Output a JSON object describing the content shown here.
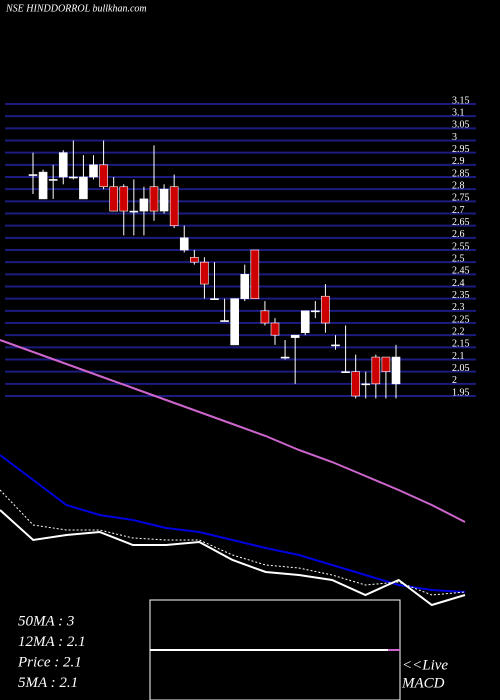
{
  "chart_data": {
    "type": "candlestick",
    "title": "NSE HINDDORROL bullkhan.com",
    "ylim": [
      1.95,
      3.15
    ],
    "yticks": [
      3.15,
      3.1,
      3.05,
      3,
      2.95,
      2.9,
      2.85,
      2.8,
      2.75,
      2.7,
      2.65,
      2.6,
      2.55,
      2.5,
      2.45,
      2.4,
      2.35,
      2.3,
      2.25,
      2.2,
      2.15,
      2.1,
      2.05,
      2,
      1.95
    ],
    "grid": true,
    "grid_color": "#1c1c80",
    "up_color": "#ffffff",
    "down_color": "#cc0000",
    "candles": [
      {
        "open": 2.86,
        "high": 2.95,
        "low": 2.78,
        "close": 2.86
      },
      {
        "open": 2.76,
        "high": 2.88,
        "low": 2.76,
        "close": 2.87
      },
      {
        "open": 2.84,
        "high": 2.9,
        "low": 2.76,
        "close": 2.84
      },
      {
        "open": 2.85,
        "high": 2.96,
        "low": 2.82,
        "close": 2.95
      },
      {
        "open": 2.85,
        "high": 3.0,
        "low": 2.84,
        "close": 2.85
      },
      {
        "open": 2.76,
        "high": 2.94,
        "low": 2.76,
        "close": 2.85
      },
      {
        "open": 2.85,
        "high": 2.94,
        "low": 2.84,
        "close": 2.9
      },
      {
        "open": 2.9,
        "high": 3.0,
        "low": 2.8,
        "close": 2.81
      },
      {
        "open": 2.81,
        "high": 2.85,
        "low": 2.71,
        "close": 2.71
      },
      {
        "open": 2.81,
        "high": 2.82,
        "low": 2.61,
        "close": 2.71
      },
      {
        "open": 2.71,
        "high": 2.84,
        "low": 2.61,
        "close": 2.71
      },
      {
        "open": 2.71,
        "high": 2.81,
        "low": 2.61,
        "close": 2.76
      },
      {
        "open": 2.81,
        "high": 2.98,
        "low": 2.67,
        "close": 2.71
      },
      {
        "open": 2.71,
        "high": 2.82,
        "low": 2.7,
        "close": 2.8
      },
      {
        "open": 2.81,
        "high": 2.86,
        "low": 2.64,
        "close": 2.65
      },
      {
        "open": 2.55,
        "high": 2.65,
        "low": 2.54,
        "close": 2.6
      },
      {
        "open": 2.52,
        "high": 2.55,
        "low": 2.49,
        "close": 2.5
      },
      {
        "open": 2.5,
        "high": 2.52,
        "low": 2.35,
        "close": 2.41
      },
      {
        "open": 2.35,
        "high": 2.5,
        "low": 2.35,
        "close": 2.35
      },
      {
        "open": 2.26,
        "high": 2.35,
        "low": 2.26,
        "close": 2.26
      },
      {
        "open": 2.16,
        "high": 2.35,
        "low": 2.16,
        "close": 2.35
      },
      {
        "open": 2.35,
        "high": 2.49,
        "low": 2.34,
        "close": 2.45
      },
      {
        "open": 2.55,
        "high": 2.55,
        "low": 2.35,
        "close": 2.35
      },
      {
        "open": 2.3,
        "high": 2.34,
        "low": 2.24,
        "close": 2.25
      },
      {
        "open": 2.25,
        "high": 2.27,
        "low": 2.16,
        "close": 2.2
      },
      {
        "open": 2.11,
        "high": 2.18,
        "low": 2.1,
        "close": 2.11
      },
      {
        "open": 2.19,
        "high": 2.2,
        "low": 2.0,
        "close": 2.2
      },
      {
        "open": 2.21,
        "high": 2.3,
        "low": 2.2,
        "close": 2.3
      },
      {
        "open": 2.3,
        "high": 2.34,
        "low": 2.27,
        "close": 2.3
      },
      {
        "open": 2.36,
        "high": 2.41,
        "low": 2.21,
        "close": 2.25
      },
      {
        "open": 2.16,
        "high": 2.2,
        "low": 2.14,
        "close": 2.16
      },
      {
        "open": 2.05,
        "high": 2.24,
        "low": 2.05,
        "close": 2.05
      },
      {
        "open": 2.05,
        "high": 2.12,
        "low": 1.94,
        "close": 1.95
      },
      {
        "open": 2.0,
        "high": 2.05,
        "low": 1.94,
        "close": 2.0
      },
      {
        "open": 2.11,
        "high": 2.12,
        "low": 1.94,
        "close": 2.0
      },
      {
        "open": 2.11,
        "high": 2.11,
        "low": 1.94,
        "close": 2.05
      },
      {
        "open": 2.0,
        "high": 2.16,
        "low": 1.94,
        "close": 2.11
      }
    ],
    "ma_panel": {
      "ylim": [
        -10,
        300
      ],
      "series": [
        {
          "color": "#cc66cc",
          "values": [
            260,
            248,
            236,
            224,
            212,
            200,
            188,
            176,
            164,
            150,
            138,
            124,
            110,
            95,
            78
          ]
        },
        {
          "color": "#0000dd",
          "values": [
            145,
            120,
            95,
            85,
            80,
            72,
            68,
            60,
            52,
            45,
            35,
            25,
            15,
            10,
            8
          ]
        },
        {
          "color": "#ffffff",
          "values": [
            90,
            60,
            65,
            68,
            55,
            55,
            58,
            40,
            28,
            25,
            20,
            5,
            20,
            -5,
            5
          ]
        },
        {
          "color": "#ffffff",
          "dashed": true,
          "values": [
            110,
            75,
            70,
            70,
            62,
            60,
            60,
            45,
            35,
            32,
            25,
            15,
            18,
            5,
            8
          ]
        }
      ]
    },
    "stats": [
      "50MA : 3",
      "12MA : 2.1",
      "Price   : 2.1",
      "5MA : 2.1"
    ],
    "macd_label": [
      "<<Live",
      "MACD"
    ]
  }
}
